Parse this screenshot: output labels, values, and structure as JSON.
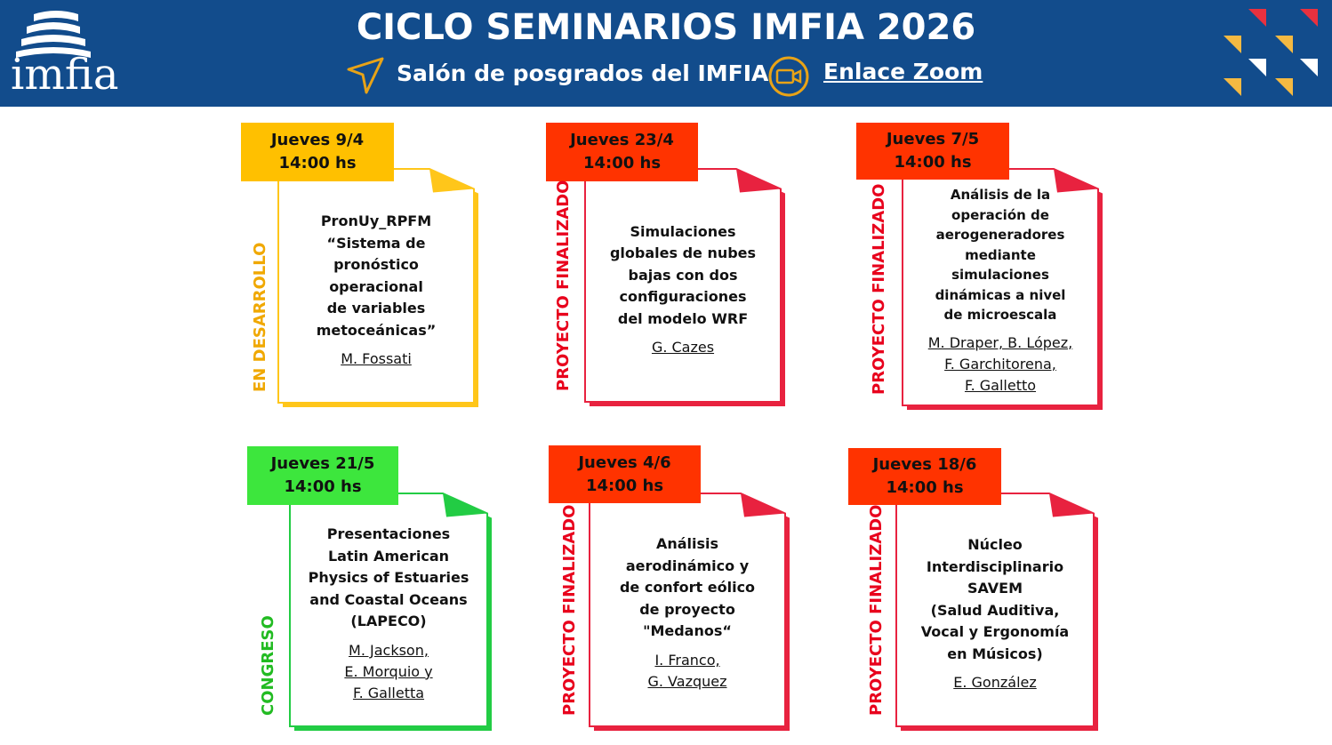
{
  "header": {
    "logo": "imfia",
    "title": "CICLO SEMINARIOS IMFIA 2026",
    "location": "Salón de posgrados del IMFIA",
    "link": "Enlace Zoom"
  },
  "seminars": [
    {
      "date": "Jueves 9/4",
      "time": "14:00 hs",
      "status": "EN DESARROLLO",
      "title": [
        "PronUy_RPFM",
        "“Sistema de",
        "pronóstico",
        "operacional",
        "de variables",
        "metoceánicas”"
      ],
      "authors": [
        "M. Fossati"
      ]
    },
    {
      "date": "Jueves 23/4",
      "time": "14:00 hs",
      "status": "PROYECTO FINALIZADO",
      "title": [
        "Simulaciones",
        "globales de nubes",
        "bajas con dos",
        "configuraciones",
        "del modelo WRF"
      ],
      "authors": [
        "G. Cazes"
      ]
    },
    {
      "date": "Jueves 7/5",
      "time": "14:00 hs",
      "status": "PROYECTO FINALIZADO",
      "title": [
        "Análisis de la",
        "operación de",
        "aerogeneradores",
        "mediante",
        "simulaciones",
        "dinámicas a nivel",
        "de microescala"
      ],
      "authors": [
        "M. Draper, B. López,",
        "F. Garchitorena,",
        "F. Galletto"
      ]
    },
    {
      "date": "Jueves 21/5",
      "time": "14:00 hs",
      "status": "CONGRESO",
      "title": [
        "Presentaciones",
        "Latin American",
        "Physics of Estuaries",
        "and Coastal Oceans",
        "(LAPECO)"
      ],
      "authors": [
        "M. Jackson,",
        "E. Morquio y",
        "F. Galletta"
      ]
    },
    {
      "date": "Jueves 4/6",
      "time": "14:00 hs",
      "status": "PROYECTO FINALIZADO",
      "title": [
        "Análisis",
        "aerodinámico y",
        "de confort eólico",
        "de proyecto",
        "\"Medanos“"
      ],
      "authors": [
        "I. Franco,",
        "G. Vazquez"
      ]
    },
    {
      "date": "Jueves 18/6",
      "time": "14:00 hs",
      "status": "PROYECTO FINALIZADO",
      "title": [
        "Núcleo",
        "Interdisciplinario",
        "SAVEM",
        "(Salud Auditiva,",
        "Vocal y Ergonomía",
        "en Músicos)"
      ],
      "authors": [
        "E. González"
      ]
    }
  ]
}
